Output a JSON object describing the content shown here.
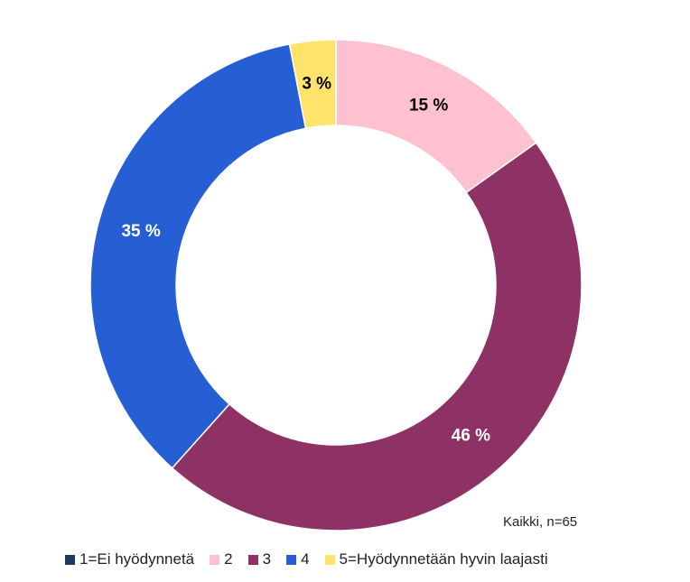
{
  "chart_data": {
    "type": "pie",
    "donut": true,
    "categories": [
      "1=Ei hyödynnetä",
      "2",
      "3",
      "4",
      "5=Hyödynnetään hyvin laajasti"
    ],
    "values": [
      0,
      15,
      46,
      35,
      3
    ],
    "value_labels": [
      "",
      "15 %",
      "46 %",
      "35 %",
      "3 %"
    ],
    "colors": [
      "#1b3b5f",
      "#ffc0d0",
      "#8e3164",
      "#255fd3",
      "#ffe36b"
    ],
    "label_colors": [
      "#ffffff",
      "#000000",
      "#ffffff",
      "#ffffff",
      "#000000"
    ],
    "note": "Kaikki, n=65",
    "legend_placement": "bottom"
  }
}
